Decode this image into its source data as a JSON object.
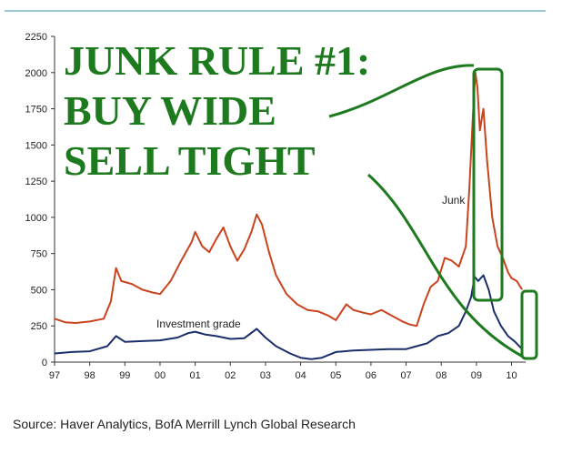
{
  "headline": {
    "line1": "JUNK RULE #1:",
    "line2": "BUY WIDE",
    "line3": "SELL TIGHT"
  },
  "source": "Source: Haver Analytics, BofA Merrill Lynch Global Research",
  "colors": {
    "junk": "#c9431e",
    "investment_grade": "#1a2e6b",
    "annotation": "#1e7a1e",
    "axis": "#333333"
  },
  "chart_data": {
    "type": "line",
    "ylim": [
      0,
      2250
    ],
    "yticks": [
      0,
      250,
      500,
      750,
      1000,
      1250,
      1500,
      1750,
      2000,
      2250
    ],
    "xlim": [
      1997.0,
      2010.4
    ],
    "xticks": [
      {
        "value": 1997,
        "label": "97"
      },
      {
        "value": 1998,
        "label": "98"
      },
      {
        "value": 1999,
        "label": "99"
      },
      {
        "value": 2000,
        "label": "00"
      },
      {
        "value": 2001,
        "label": "01"
      },
      {
        "value": 2002,
        "label": "02"
      },
      {
        "value": 2003,
        "label": "03"
      },
      {
        "value": 2004,
        "label": "04"
      },
      {
        "value": 2005,
        "label": "05"
      },
      {
        "value": 2006,
        "label": "06"
      },
      {
        "value": 2007,
        "label": "07"
      },
      {
        "value": 2008,
        "label": "08"
      },
      {
        "value": 2009,
        "label": "09"
      },
      {
        "value": 2010,
        "label": "10"
      }
    ],
    "grid": false,
    "series": [
      {
        "name": "Junk",
        "color": "#c9431e",
        "points": [
          [
            1997.0,
            300
          ],
          [
            1997.3,
            275
          ],
          [
            1997.6,
            270
          ],
          [
            1998.0,
            280
          ],
          [
            1998.4,
            300
          ],
          [
            1998.6,
            420
          ],
          [
            1998.75,
            650
          ],
          [
            1998.9,
            560
          ],
          [
            1999.2,
            540
          ],
          [
            1999.5,
            500
          ],
          [
            1999.8,
            480
          ],
          [
            2000.0,
            470
          ],
          [
            2000.3,
            560
          ],
          [
            2000.6,
            700
          ],
          [
            2000.9,
            830
          ],
          [
            2001.0,
            900
          ],
          [
            2001.2,
            800
          ],
          [
            2001.4,
            760
          ],
          [
            2001.6,
            850
          ],
          [
            2001.8,
            930
          ],
          [
            2002.0,
            800
          ],
          [
            2002.2,
            700
          ],
          [
            2002.4,
            780
          ],
          [
            2002.6,
            900
          ],
          [
            2002.75,
            1020
          ],
          [
            2002.9,
            950
          ],
          [
            2003.1,
            760
          ],
          [
            2003.3,
            600
          ],
          [
            2003.6,
            470
          ],
          [
            2003.9,
            400
          ],
          [
            2004.2,
            360
          ],
          [
            2004.5,
            350
          ],
          [
            2004.8,
            320
          ],
          [
            2005.0,
            290
          ],
          [
            2005.3,
            400
          ],
          [
            2005.5,
            360
          ],
          [
            2005.8,
            340
          ],
          [
            2006.0,
            330
          ],
          [
            2006.3,
            360
          ],
          [
            2006.6,
            320
          ],
          [
            2006.9,
            280
          ],
          [
            2007.1,
            260
          ],
          [
            2007.3,
            250
          ],
          [
            2007.5,
            400
          ],
          [
            2007.7,
            520
          ],
          [
            2007.9,
            560
          ],
          [
            2008.1,
            720
          ],
          [
            2008.3,
            700
          ],
          [
            2008.5,
            660
          ],
          [
            2008.7,
            800
          ],
          [
            2008.8,
            1200
          ],
          [
            2008.9,
            1700
          ],
          [
            2008.97,
            2000
          ],
          [
            2009.03,
            1900
          ],
          [
            2009.1,
            1600
          ],
          [
            2009.2,
            1750
          ],
          [
            2009.3,
            1400
          ],
          [
            2009.45,
            1000
          ],
          [
            2009.6,
            800
          ],
          [
            2009.75,
            720
          ],
          [
            2009.9,
            620
          ],
          [
            2010.0,
            580
          ],
          [
            2010.15,
            560
          ],
          [
            2010.3,
            500
          ]
        ]
      },
      {
        "name": "Investment grade",
        "color": "#1a2e6b",
        "points": [
          [
            1997.0,
            60
          ],
          [
            1997.5,
            70
          ],
          [
            1998.0,
            75
          ],
          [
            1998.5,
            110
          ],
          [
            1998.75,
            180
          ],
          [
            1999.0,
            140
          ],
          [
            1999.5,
            145
          ],
          [
            2000.0,
            150
          ],
          [
            2000.5,
            170
          ],
          [
            2000.8,
            200
          ],
          [
            2001.0,
            210
          ],
          [
            2001.3,
            190
          ],
          [
            2001.6,
            180
          ],
          [
            2002.0,
            160
          ],
          [
            2002.4,
            165
          ],
          [
            2002.75,
            230
          ],
          [
            2003.0,
            170
          ],
          [
            2003.3,
            110
          ],
          [
            2003.7,
            60
          ],
          [
            2004.0,
            30
          ],
          [
            2004.3,
            20
          ],
          [
            2004.6,
            30
          ],
          [
            2005.0,
            70
          ],
          [
            2005.5,
            80
          ],
          [
            2006.0,
            85
          ],
          [
            2006.5,
            90
          ],
          [
            2007.0,
            90
          ],
          [
            2007.3,
            110
          ],
          [
            2007.6,
            130
          ],
          [
            2007.9,
            180
          ],
          [
            2008.2,
            200
          ],
          [
            2008.5,
            250
          ],
          [
            2008.7,
            350
          ],
          [
            2008.85,
            450
          ],
          [
            2008.95,
            590
          ],
          [
            2009.05,
            560
          ],
          [
            2009.2,
            600
          ],
          [
            2009.35,
            500
          ],
          [
            2009.5,
            350
          ],
          [
            2009.7,
            250
          ],
          [
            2009.9,
            180
          ],
          [
            2010.1,
            140
          ],
          [
            2010.3,
            90
          ]
        ]
      }
    ]
  }
}
